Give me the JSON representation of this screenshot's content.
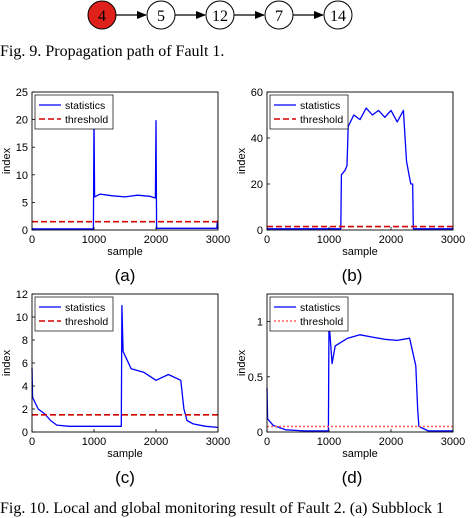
{
  "propagation": {
    "nodes": [
      {
        "label": "4",
        "fault": true
      },
      {
        "label": "5",
        "fault": false
      },
      {
        "label": "12",
        "fault": false
      },
      {
        "label": "7",
        "fault": false
      },
      {
        "label": "14",
        "fault": false
      }
    ],
    "fault_color": "#e0201a"
  },
  "captions": {
    "fig9": "Fig. 9.   Propagation path of Fault 1.",
    "fig10": "Fig. 10.   Local and global monitoring result of Fault 2. (a) Subblock 1"
  },
  "chart_data": [
    {
      "type": "line",
      "label": "(a)",
      "xlabel": "sample",
      "ylabel": "index",
      "xlim": [
        0,
        3000
      ],
      "ylim": [
        0,
        25
      ],
      "xticks": [
        0,
        1000,
        2000,
        3000
      ],
      "yticks": [
        0,
        5,
        10,
        15,
        20,
        25
      ],
      "legend": "top-left",
      "series": [
        {
          "name": "statistics",
          "color": "#0000ff",
          "style": "solid",
          "x": [
            0,
            10,
            500,
            990,
            1000,
            1010,
            1100,
            1300,
            1500,
            1700,
            1900,
            1990,
            2000,
            2010,
            2500,
            2980,
            2990,
            3000
          ],
          "y": [
            0.3,
            0.2,
            0.2,
            0.2,
            20,
            6,
            6.5,
            6.2,
            6.0,
            6.3,
            6.1,
            5.8,
            19.8,
            0.3,
            0.3,
            0.3,
            1.6,
            0.3
          ]
        },
        {
          "name": "threshold",
          "color": "#d40000",
          "style": "dashed",
          "x": [
            0,
            3000
          ],
          "y": [
            1.5,
            1.5
          ]
        }
      ]
    },
    {
      "type": "line",
      "label": "(b)",
      "xlabel": "sample",
      "ylabel": "index",
      "xlim": [
        0,
        3000
      ],
      "ylim": [
        0,
        60
      ],
      "xticks": [
        0,
        1000,
        2000,
        3000
      ],
      "yticks": [
        0,
        20,
        40,
        60
      ],
      "legend": "top-left",
      "series": [
        {
          "name": "statistics",
          "color": "#0000ff",
          "style": "solid",
          "x": [
            0,
            600,
            1190,
            1200,
            1260,
            1290,
            1310,
            1400,
            1500,
            1600,
            1700,
            1800,
            1900,
            2000,
            2100,
            2200,
            2250,
            2290,
            2320,
            2350,
            2360,
            2400,
            3000
          ],
          "y": [
            0.5,
            0.5,
            0.5,
            24,
            26,
            28,
            45,
            50,
            48,
            53,
            50,
            52,
            49,
            52,
            47,
            52,
            30,
            24,
            20,
            20,
            0.5,
            0.5,
            0.5
          ]
        },
        {
          "name": "threshold",
          "color": "#d40000",
          "style": "dashed",
          "x": [
            0,
            3000
          ],
          "y": [
            1.5,
            1.5
          ]
        }
      ]
    },
    {
      "type": "line",
      "label": "(c)",
      "xlabel": "sample",
      "ylabel": "index",
      "xlim": [
        0,
        3000
      ],
      "ylim": [
        0,
        12
      ],
      "xticks": [
        0,
        1000,
        2000,
        3000
      ],
      "yticks": [
        0,
        2,
        4,
        6,
        8,
        10,
        12
      ],
      "legend": "top-left",
      "series": [
        {
          "name": "statistics",
          "color": "#0000ff",
          "style": "solid",
          "x": [
            0,
            10,
            100,
            200,
            300,
            400,
            600,
            800,
            1000,
            1200,
            1400,
            1440,
            1450,
            1470,
            1600,
            1800,
            2000,
            2200,
            2400,
            2450,
            2500,
            2600,
            2800,
            3000
          ],
          "y": [
            5.6,
            3.0,
            2.0,
            1.6,
            1.0,
            0.6,
            0.5,
            0.5,
            0.5,
            0.5,
            0.5,
            0.5,
            11,
            7,
            5.5,
            5.2,
            4.5,
            5.0,
            4.5,
            2.0,
            1.0,
            0.7,
            0.5,
            0.4
          ]
        },
        {
          "name": "threshold",
          "color": "#d40000",
          "style": "dashed",
          "x": [
            0,
            3000
          ],
          "y": [
            1.5,
            1.5
          ]
        }
      ]
    },
    {
      "type": "line",
      "label": "(d)",
      "xlabel": "sample",
      "ylabel": "index",
      "xlim": [
        0,
        3000
      ],
      "ylim": [
        0,
        1.25
      ],
      "xticks": [
        0,
        1000,
        2000,
        3000
      ],
      "yticks": [
        0,
        0.5,
        1
      ],
      "legend": "top-left",
      "series": [
        {
          "name": "statistics",
          "color": "#0000ff",
          "style": "solid",
          "x": [
            0,
            10,
            100,
            300,
            600,
            990,
            1000,
            1050,
            1100,
            1300,
            1500,
            1700,
            1900,
            2100,
            2300,
            2400,
            2430,
            2450,
            2600,
            3000
          ],
          "y": [
            0.4,
            0.12,
            0.06,
            0.02,
            0.01,
            0.01,
            1.0,
            0.62,
            0.78,
            0.85,
            0.88,
            0.86,
            0.84,
            0.83,
            0.85,
            0.6,
            0.2,
            0.05,
            0.01,
            0.01
          ]
        },
        {
          "name": "threshold",
          "color": "#ff5a5a",
          "style": "dotted",
          "x": [
            0,
            3000
          ],
          "y": [
            0.05,
            0.05
          ]
        }
      ]
    }
  ]
}
